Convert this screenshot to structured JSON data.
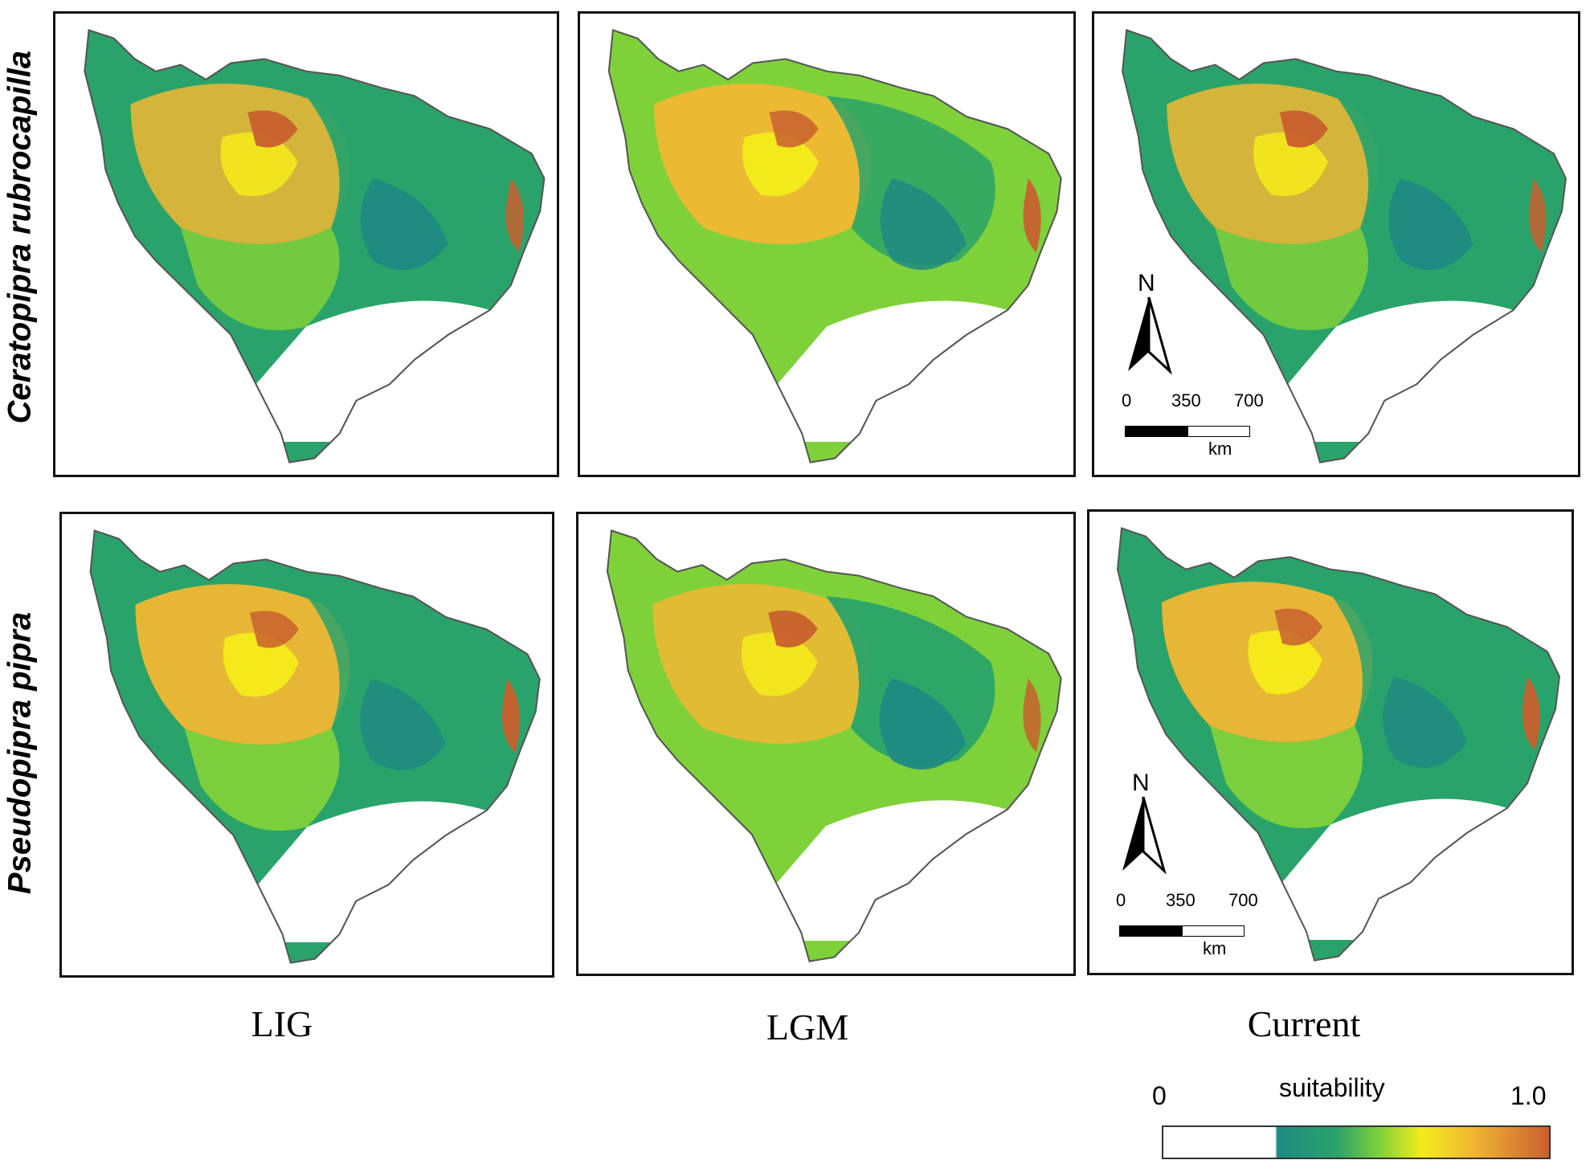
{
  "rows": [
    {
      "label": "Ceratopipra rubrocapilla"
    },
    {
      "label": "Pseudopipra pipra"
    }
  ],
  "columns": [
    {
      "label": "LIG"
    },
    {
      "label": "LGM"
    },
    {
      "label": "Current"
    }
  ],
  "scale_bar": {
    "tick_0": "0",
    "tick_1": "350",
    "tick_2": "700",
    "unit": "km"
  },
  "north_arrow": {
    "label": "N"
  },
  "legend": {
    "title": "suitability",
    "min": "0",
    "max": "1.0"
  },
  "colors": {
    "low": "#1f8a83",
    "mid_green": "#2aa36a",
    "light_green": "#7fd13a",
    "yellow": "#f3ec1a",
    "orange": "#f2b733",
    "high": "#c8602e",
    "outline": "#555555"
  }
}
